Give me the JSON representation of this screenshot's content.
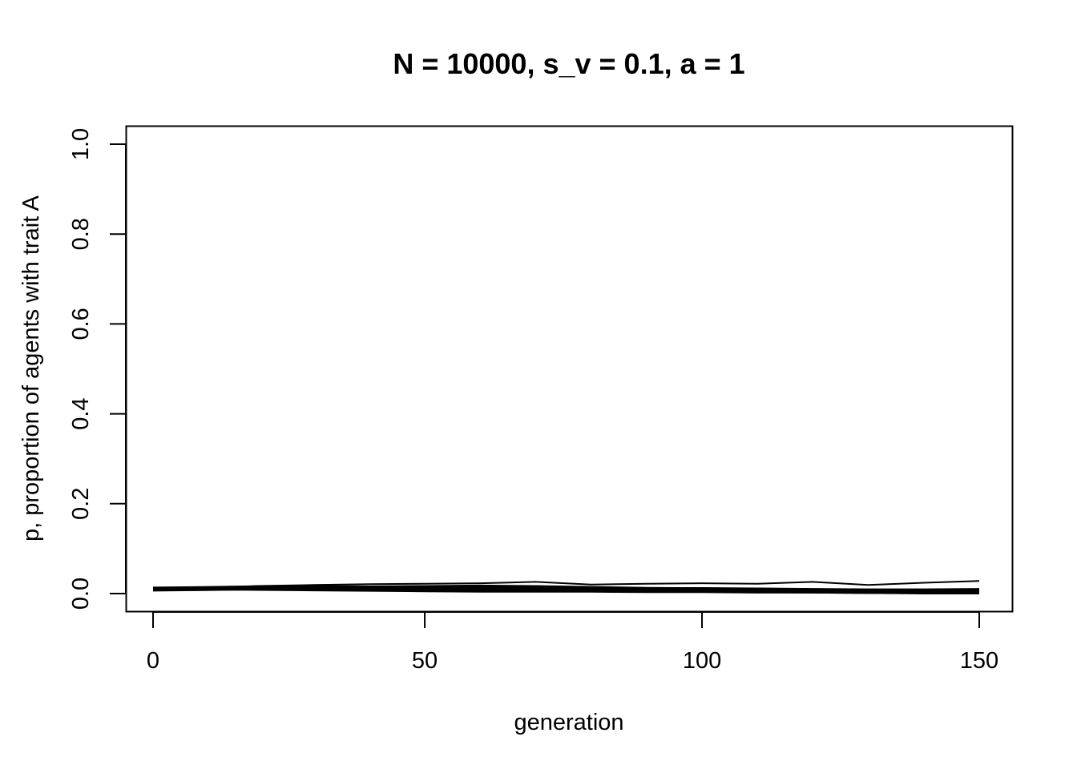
{
  "chart_data": {
    "type": "line",
    "title": "N = 10000, s_v = 0.1, a = 1",
    "xlabel": "generation",
    "ylabel": "p, proportion of agents with trait A",
    "xlim": [
      1,
      150
    ],
    "ylim": [
      0,
      1
    ],
    "x_ticks": [
      0,
      50,
      100,
      150
    ],
    "x_tick_labels": [
      "0",
      "50",
      "100",
      "150"
    ],
    "y_ticks": [
      0.0,
      0.2,
      0.4,
      0.6,
      0.8,
      1.0
    ],
    "y_tick_labels": [
      "0.0",
      "0.2",
      "0.4",
      "0.6",
      "0.8",
      "1.0"
    ],
    "grid": false,
    "legend": "none",
    "x": [
      1,
      10,
      20,
      30,
      40,
      50,
      60,
      70,
      80,
      90,
      100,
      110,
      120,
      130,
      140,
      150
    ],
    "series": [
      {
        "values": [
          0.01,
          0.012,
          0.017,
          0.019,
          0.021,
          0.022,
          0.023,
          0.026,
          0.02,
          0.022,
          0.023,
          0.022,
          0.026,
          0.019,
          0.024,
          0.028
        ],
        "style": "thin"
      },
      {
        "values": [
          0.01,
          0.011,
          0.015,
          0.017,
          0.016,
          0.017,
          0.018,
          0.017,
          0.015,
          0.013,
          0.012,
          0.011,
          0.01,
          0.009,
          0.008,
          0.008
        ],
        "style": "thin"
      },
      {
        "values": [
          0.01,
          0.012,
          0.014,
          0.013,
          0.012,
          0.013,
          0.012,
          0.011,
          0.01,
          0.009,
          0.008,
          0.007,
          0.006,
          0.005,
          0.004,
          0.004
        ],
        "style": "thin"
      },
      {
        "values": [
          0.01,
          0.01,
          0.011,
          0.009,
          0.008,
          0.008,
          0.007,
          0.006,
          0.005,
          0.005,
          0.004,
          0.003,
          0.002,
          0.001,
          0.001,
          0.001
        ],
        "style": "thin"
      },
      {
        "values": [
          0.01,
          0.009,
          0.008,
          0.007,
          0.006,
          0.005,
          0.004,
          0.004,
          0.004,
          0.003,
          0.003,
          0.002,
          0.002,
          0.001,
          0.0,
          0.0
        ],
        "style": "thin"
      },
      {
        "values": [
          0.01,
          0.011,
          0.013,
          0.013,
          0.012,
          0.013,
          0.013,
          0.012,
          0.01,
          0.009,
          0.009,
          0.008,
          0.007,
          0.006,
          0.006,
          0.007
        ],
        "style": "thick"
      }
    ]
  }
}
